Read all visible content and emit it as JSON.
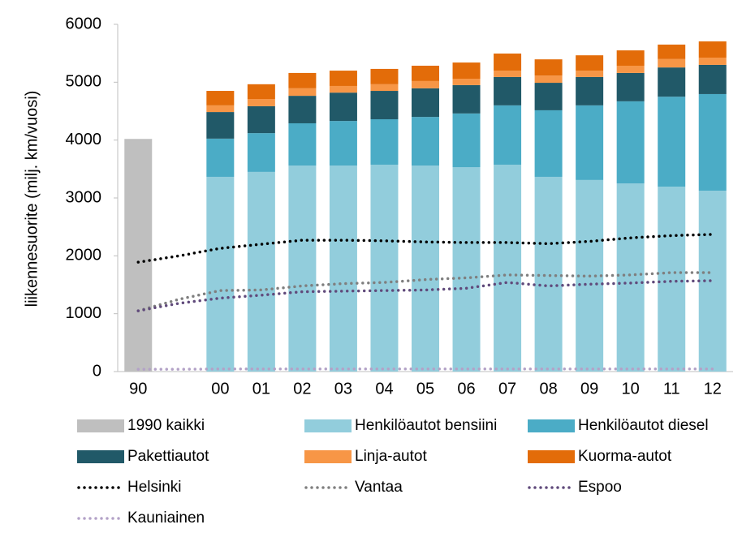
{
  "chart_data": {
    "type": "bar",
    "y_label": "liikennesuorite (milj. km/vuosi)",
    "categories": [
      "90",
      null,
      "00",
      "01",
      "02",
      "03",
      "04",
      "05",
      "06",
      "07",
      "08",
      "09",
      "10",
      "11",
      "12"
    ],
    "ylim": [
      0,
      6000
    ],
    "yticks": [
      0,
      1000,
      2000,
      3000,
      4000,
      5000,
      6000
    ],
    "stacked": true,
    "series": [
      {
        "name": "1990 kaikki",
        "color": "#bfbfbf",
        "kind": "bar",
        "values": [
          4020,
          null,
          null,
          null,
          null,
          null,
          null,
          null,
          null,
          null,
          null,
          null,
          null,
          null,
          null
        ]
      },
      {
        "name": "Henkilöautot bensiini",
        "color": "#92cddc",
        "kind": "bar",
        "values": [
          null,
          null,
          3365,
          3450,
          3560,
          3560,
          3575,
          3560,
          3530,
          3575,
          3365,
          3310,
          3250,
          3195,
          3125
        ]
      },
      {
        "name": "Henkilöautot diesel",
        "color": "#4bacc6",
        "kind": "bar",
        "values": [
          null,
          null,
          660,
          670,
          730,
          770,
          785,
          840,
          930,
          1025,
          1150,
          1290,
          1420,
          1555,
          1670
        ]
      },
      {
        "name": "Pakettiautot",
        "color": "#215968",
        "kind": "bar",
        "values": [
          null,
          null,
          460,
          465,
          475,
          490,
          490,
          495,
          490,
          490,
          475,
          490,
          490,
          505,
          505
        ]
      },
      {
        "name": "Linja-autot",
        "color": "#f79646",
        "kind": "bar",
        "values": [
          null,
          null,
          115,
          125,
          130,
          115,
          115,
          125,
          110,
          110,
          125,
          110,
          125,
          145,
          125
        ]
      },
      {
        "name": "Kuorma-autot",
        "color": "#e36c09",
        "kind": "bar",
        "values": [
          null,
          null,
          250,
          255,
          265,
          265,
          265,
          265,
          280,
          295,
          280,
          265,
          265,
          250,
          280
        ]
      },
      {
        "name": "Helsinki",
        "color": "#000000",
        "kind": "line",
        "values": [
          1890,
          2000,
          2130,
          2200,
          2270,
          2270,
          2260,
          2240,
          2230,
          2230,
          2210,
          2250,
          2310,
          2350,
          2370
        ]
      },
      {
        "name": "Vantaa",
        "color": "#7f7f7f",
        "kind": "line",
        "values": [
          1050,
          1250,
          1400,
          1410,
          1480,
          1520,
          1540,
          1590,
          1620,
          1670,
          1660,
          1650,
          1670,
          1710,
          1710
        ]
      },
      {
        "name": "Espoo",
        "color": "#604a7b",
        "kind": "line",
        "values": [
          1050,
          1180,
          1270,
          1320,
          1380,
          1390,
          1400,
          1410,
          1440,
          1540,
          1480,
          1510,
          1530,
          1560,
          1570
        ]
      },
      {
        "name": "Kauniainen",
        "color": "#b3a2c7",
        "kind": "line",
        "values": [
          40,
          40,
          45,
          45,
          45,
          45,
          45,
          45,
          45,
          45,
          45,
          45,
          45,
          45,
          45
        ]
      }
    ]
  }
}
